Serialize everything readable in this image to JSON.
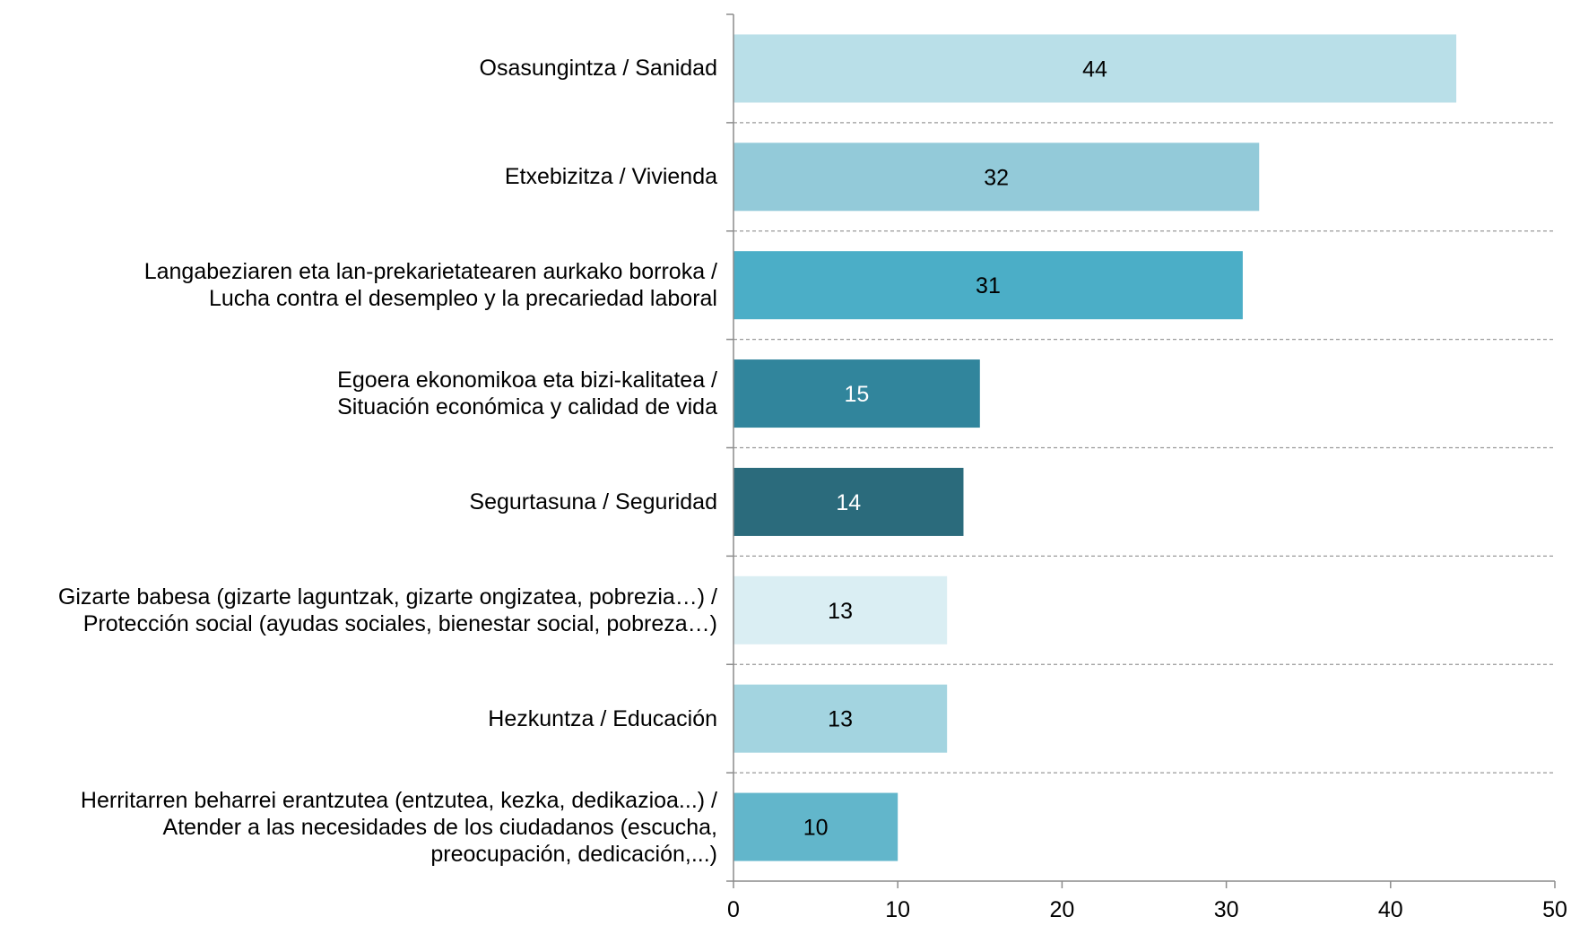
{
  "chart_data": {
    "type": "bar",
    "orientation": "horizontal",
    "title": "",
    "xlabel": "",
    "ylabel": "",
    "xlim": [
      0,
      50
    ],
    "xticks": [
      0,
      10,
      20,
      30,
      40,
      50
    ],
    "grid": "dashed separators between categories",
    "legend": "none",
    "categories": [
      {
        "lines": [
          "Osasungintza / Sanidad"
        ],
        "value": 44,
        "color": "#b9dfe8",
        "label_color": "#000000"
      },
      {
        "lines": [
          "Etxebizitza / Vivienda"
        ],
        "value": 32,
        "color": "#93cad9",
        "label_color": "#000000"
      },
      {
        "lines": [
          "Langabeziaren eta lan-prekarietatearen aurkako borroka /",
          "Lucha contra el desempleo y la precariedad laboral"
        ],
        "value": 31,
        "color": "#4baec7",
        "label_color": "#000000"
      },
      {
        "lines": [
          "Egoera ekonomikoa eta bizi-kalitatea /",
          "Situación económica y calidad de vida"
        ],
        "value": 15,
        "color": "#31859c",
        "label_color": "#ffffff"
      },
      {
        "lines": [
          "Segurtasuna / Seguridad"
        ],
        "value": 14,
        "color": "#2b6b7c",
        "label_color": "#ffffff"
      },
      {
        "lines": [
          "Gizarte babesa (gizarte laguntzak, gizarte ongizatea, pobrezia…) /",
          "Protección social (ayudas sociales, bienestar social, pobreza…)"
        ],
        "value": 13,
        "color": "#daeef3",
        "label_color": "#000000"
      },
      {
        "lines": [
          "Hezkuntza / Educación"
        ],
        "value": 13,
        "color": "#a3d4e0",
        "label_color": "#000000"
      },
      {
        "lines": [
          "Herritarren beharrei erantzutea (entzutea, kezka, dedikazioa...) /",
          "Atender a las necesidades de los ciudadanos (escucha,",
          "preocupación, dedicación,...)"
        ],
        "value": 10,
        "color": "#62b6cb",
        "label_color": "#000000"
      }
    ]
  }
}
